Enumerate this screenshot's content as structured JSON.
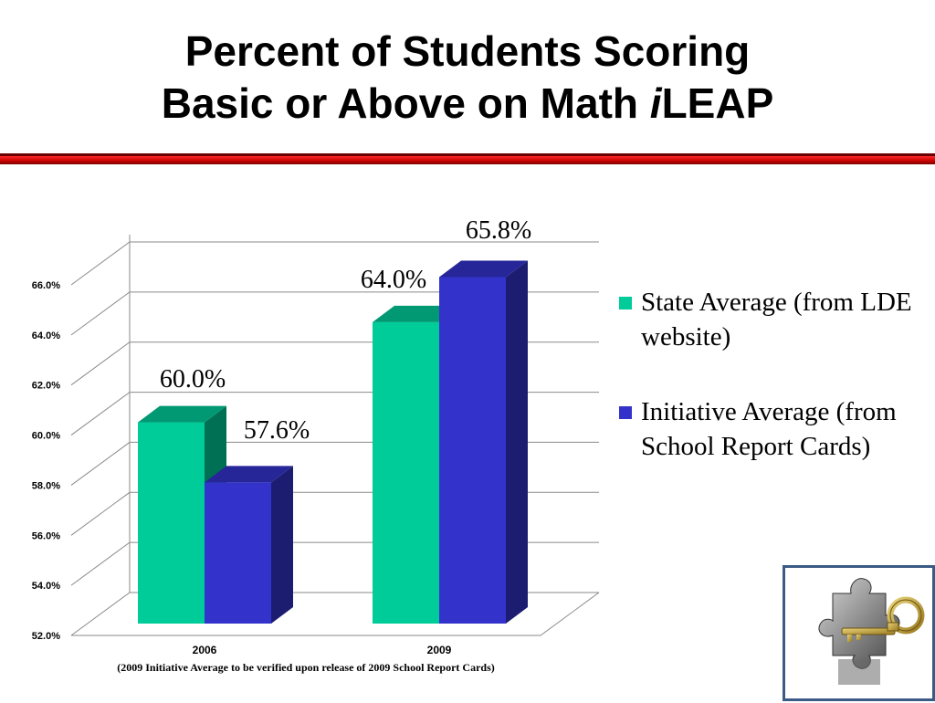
{
  "slide": {
    "title_line1": "Percent of Students Scoring",
    "title_line2_prefix": "Basic or Above on Math ",
    "title_line2_italic": "i",
    "title_line2_suffix": "LEAP",
    "footnote": "(2009 Initiative Average to be verified upon release of 2009 School Report Cards)"
  },
  "legend": [
    {
      "label": "State Average (from LDE website)",
      "color": "#00cc99"
    },
    {
      "label": "Initiative Average (from School Report Cards)",
      "color": "#3333cc"
    }
  ],
  "colors": {
    "rule": "#e00000",
    "logo_border": "#3b5a86"
  },
  "icons": {
    "logo": "puzzle-key-icon"
  },
  "chart_data": {
    "type": "bar",
    "categories": [
      "2006",
      "2009"
    ],
    "series": [
      {
        "name": "State Average (from LDE website)",
        "values": [
          60.0,
          64.0
        ],
        "labels": [
          "60.0%",
          "64.0%"
        ],
        "color": "#00cc99"
      },
      {
        "name": "Initiative Average (from School Report Cards)",
        "values": [
          57.6,
          65.8
        ],
        "labels": [
          "57.6%",
          "65.8%"
        ],
        "color": "#3333cc"
      }
    ],
    "ylim": [
      52,
      66
    ],
    "yticks": [
      "52.0%",
      "54.0%",
      "56.0%",
      "58.0%",
      "60.0%",
      "62.0%",
      "64.0%",
      "66.0%"
    ],
    "grid": true,
    "legend_position": "right",
    "style": "3d-column"
  }
}
